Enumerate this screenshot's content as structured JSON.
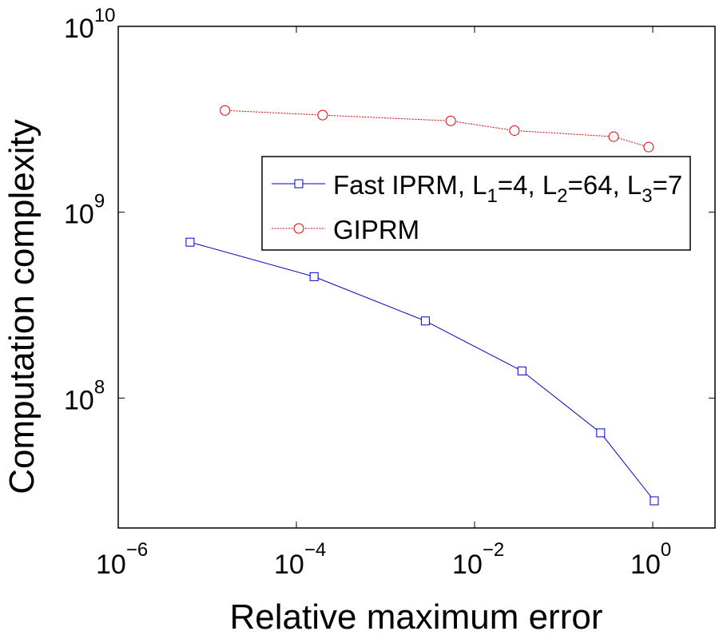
{
  "chart_data": {
    "type": "line",
    "title": "",
    "xlabel": "Relative maximum error",
    "ylabel": "Computation complexity",
    "xscale": "log",
    "yscale": "log",
    "xlim": [
      1e-06,
      5
    ],
    "ylim": [
      20000000.0,
      10000000000.0
    ],
    "grid": false,
    "x_ticks": [
      {
        "value": 1e-06,
        "base": "10",
        "exp": "-6"
      },
      {
        "value": 0.0001,
        "base": "10",
        "exp": "-4"
      },
      {
        "value": 0.01,
        "base": "10",
        "exp": "-2"
      },
      {
        "value": 1,
        "base": "10",
        "exp": "0"
      }
    ],
    "y_ticks": [
      {
        "value": 100000000.0,
        "base": "10",
        "exp": "8"
      },
      {
        "value": 1000000000.0,
        "base": "10",
        "exp": "9"
      },
      {
        "value": 10000000000.0,
        "base": "10",
        "exp": "10"
      }
    ],
    "legend_position": "upper-right",
    "series": [
      {
        "name": "Fast IPRM, L1=4, L2=64, L3=7",
        "legend_parts": {
          "prefix": "Fast IPRM, L",
          "s1": "1",
          "m1": "=4, L",
          "s2": "2",
          "m2": "=64, L",
          "s3": "3",
          "m3": "=7"
        },
        "color": "#0000cc",
        "marker": "square",
        "line": "solid",
        "x": [
          6.4e-06,
          0.000158,
          0.0028,
          0.034,
          0.26,
          1.04
        ],
        "y": [
          690000000.0,
          450000000.0,
          260000000.0,
          140000000.0,
          65000000.0,
          28000000.0
        ]
      },
      {
        "name": "GIPRM",
        "color": "#dd0000",
        "marker": "circle",
        "line": "dotted",
        "x": [
          1.58e-05,
          0.000197,
          0.0054,
          0.028,
          0.364,
          0.9
        ],
        "y": [
          3530000000.0,
          3330000000.0,
          3100000000.0,
          2750000000.0,
          2550000000.0,
          2240000000.0
        ]
      }
    ]
  }
}
